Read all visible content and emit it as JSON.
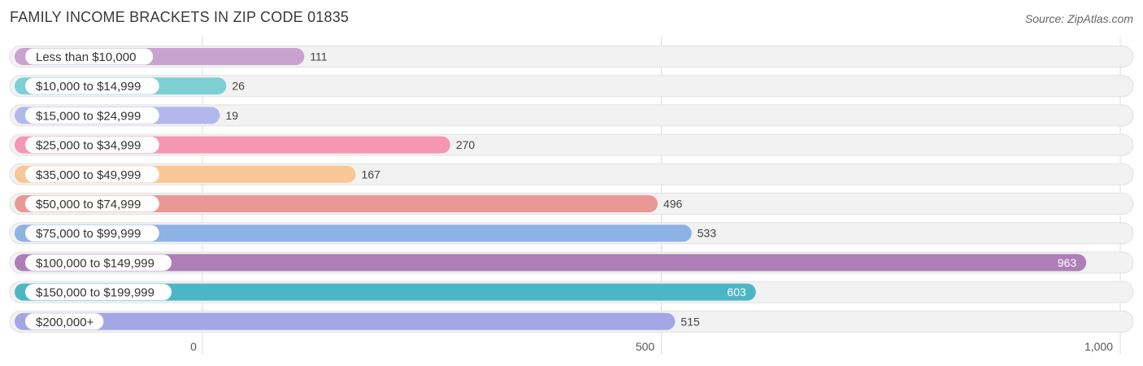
{
  "title": "FAMILY INCOME BRACKETS IN ZIP CODE 01835",
  "source": "Source: ZipAtlas.com",
  "chart_data": {
    "type": "bar",
    "orientation": "horizontal",
    "categories": [
      "Less than $10,000",
      "$10,000 to $14,999",
      "$15,000 to $24,999",
      "$25,000 to $34,999",
      "$35,000 to $49,999",
      "$50,000 to $74,999",
      "$75,000 to $99,999",
      "$100,000 to $149,999",
      "$150,000 to $199,999",
      "$200,000+"
    ],
    "values": [
      111,
      26,
      19,
      270,
      167,
      496,
      533,
      963,
      603,
      515
    ],
    "value_labels": [
      "111",
      "26",
      "19",
      "270",
      "167",
      "496",
      "533",
      "963",
      "603",
      "515"
    ],
    "colors": [
      "#c9a3cf",
      "#7ecfd4",
      "#b3b8ec",
      "#f596b4",
      "#f9c795",
      "#e99896",
      "#8cb2e6",
      "#ad7fb6",
      "#4db6c5",
      "#a3a7e6"
    ],
    "xlim": [
      0,
      1000
    ],
    "ticks": [
      0,
      500,
      1000
    ],
    "tick_labels": [
      "0",
      "500",
      "1,000"
    ],
    "grid": true
  }
}
